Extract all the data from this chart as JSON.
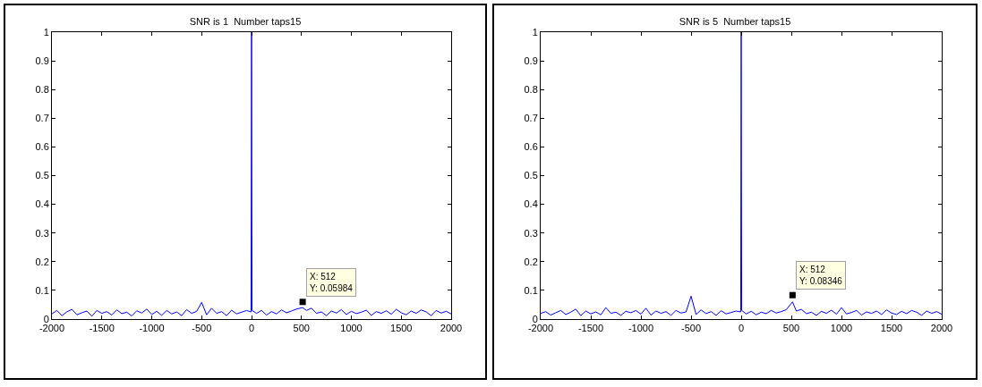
{
  "chart_data": [
    {
      "type": "line",
      "title": "SNR is 1  Number taps15",
      "xlim": [
        -2000,
        2000
      ],
      "xticks": [
        -2000,
        -1500,
        -1000,
        -500,
        0,
        500,
        1000,
        1500,
        2000
      ],
      "ylim": [
        0,
        1
      ],
      "yticks": [
        0,
        0.1,
        0.2,
        0.3,
        0.4,
        0.5,
        0.6,
        0.7,
        0.8,
        0.9,
        1
      ],
      "grid": false,
      "marker": "none",
      "line_style": "solid",
      "series": [
        {
          "color": "#0000ff",
          "x": [
            -2000,
            -1950,
            -1900,
            -1850,
            -1800,
            -1750,
            -1700,
            -1650,
            -1600,
            -1550,
            -1500,
            -1450,
            -1400,
            -1350,
            -1300,
            -1250,
            -1200,
            -1150,
            -1100,
            -1050,
            -1000,
            -950,
            -900,
            -850,
            -800,
            -750,
            -700,
            -650,
            -600,
            -550,
            -500,
            -450,
            -400,
            -350,
            -300,
            -250,
            -200,
            -150,
            -100,
            -50,
            -5,
            0,
            5,
            50,
            100,
            150,
            200,
            250,
            300,
            350,
            400,
            450,
            512,
            550,
            600,
            650,
            700,
            750,
            800,
            850,
            900,
            950,
            1000,
            1050,
            1100,
            1150,
            1200,
            1250,
            1300,
            1350,
            1400,
            1450,
            1500,
            1550,
            1600,
            1650,
            1700,
            1750,
            1800,
            1850,
            1900,
            1950,
            2000
          ],
          "values": [
            0.018,
            0.03,
            0.012,
            0.025,
            0.034,
            0.015,
            0.022,
            0.028,
            0.01,
            0.03,
            0.02,
            0.026,
            0.014,
            0.032,
            0.019,
            0.024,
            0.011,
            0.029,
            0.021,
            0.035,
            0.016,
            0.027,
            0.013,
            0.03,
            0.018,
            0.025,
            0.012,
            0.033,
            0.02,
            0.027,
            0.058,
            0.015,
            0.038,
            0.02,
            0.026,
            0.012,
            0.031,
            0.018,
            0.024,
            0.03,
            0.025,
            1,
            0.03,
            0.02,
            0.03,
            0.014,
            0.026,
            0.018,
            0.032,
            0.022,
            0.028,
            0.035,
            0.04,
            0.03,
            0.038,
            0.02,
            0.025,
            0.012,
            0.028,
            0.021,
            0.033,
            0.016,
            0.027,
            0.019,
            0.024,
            0.031,
            0.013,
            0.026,
            0.02,
            0.029,
            0.017,
            0.034,
            0.022,
            0.015,
            0.028,
            0.02,
            0.032,
            0.025,
            0.012,
            0.03,
            0.021,
            0.027,
            0.018
          ]
        },
        {
          "type": "scatter",
          "marker": "square",
          "color": "#000000",
          "x": [
            512
          ],
          "values": [
            0.05984
          ]
        }
      ],
      "annotations": [
        "X: 512\nY: 0.05984"
      ]
    },
    {
      "type": "line",
      "title": "SNR is 5  Number taps15",
      "xlim": [
        -2000,
        2000
      ],
      "xticks": [
        -2000,
        -1500,
        -1000,
        -500,
        0,
        500,
        1000,
        1500,
        2000
      ],
      "ylim": [
        0,
        1
      ],
      "yticks": [
        0,
        0.1,
        0.2,
        0.3,
        0.4,
        0.5,
        0.6,
        0.7,
        0.8,
        0.9,
        1
      ],
      "grid": false,
      "marker": "none",
      "line_style": "solid",
      "series": [
        {
          "color": "#0000ff",
          "x": [
            -2000,
            -1950,
            -1900,
            -1850,
            -1800,
            -1750,
            -1700,
            -1650,
            -1600,
            -1550,
            -1500,
            -1450,
            -1400,
            -1350,
            -1300,
            -1250,
            -1200,
            -1150,
            -1100,
            -1050,
            -1000,
            -950,
            -900,
            -850,
            -800,
            -750,
            -700,
            -650,
            -600,
            -550,
            -500,
            -450,
            -400,
            -350,
            -300,
            -250,
            -200,
            -150,
            -100,
            -50,
            -5,
            0,
            5,
            50,
            100,
            150,
            200,
            250,
            300,
            350,
            400,
            450,
            512,
            550,
            600,
            650,
            700,
            750,
            800,
            850,
            900,
            950,
            1000,
            1050,
            1100,
            1150,
            1200,
            1250,
            1300,
            1350,
            1400,
            1450,
            1500,
            1550,
            1600,
            1650,
            1700,
            1750,
            1800,
            1850,
            1900,
            1950,
            2000
          ],
          "values": [
            0.02,
            0.026,
            0.014,
            0.022,
            0.03,
            0.016,
            0.024,
            0.035,
            0.012,
            0.028,
            0.018,
            0.025,
            0.015,
            0.04,
            0.02,
            0.024,
            0.013,
            0.027,
            0.022,
            0.03,
            0.017,
            0.038,
            0.014,
            0.028,
            0.02,
            0.026,
            0.013,
            0.03,
            0.021,
            0.025,
            0.08,
            0.016,
            0.032,
            0.019,
            0.026,
            0.013,
            0.029,
            0.018,
            0.023,
            0.028,
            0.025,
            1,
            0.03,
            0.018,
            0.027,
            0.015,
            0.024,
            0.019,
            0.03,
            0.021,
            0.026,
            0.033,
            0.06,
            0.028,
            0.034,
            0.019,
            0.024,
            0.013,
            0.027,
            0.02,
            0.031,
            0.017,
            0.04,
            0.018,
            0.023,
            0.03,
            0.014,
            0.025,
            0.02,
            0.028,
            0.016,
            0.032,
            0.021,
            0.016,
            0.027,
            0.019,
            0.03,
            0.024,
            0.013,
            0.028,
            0.02,
            0.026,
            0.017
          ]
        },
        {
          "type": "scatter",
          "marker": "square",
          "color": "#000000",
          "x": [
            512
          ],
          "values": [
            0.08346
          ]
        }
      ],
      "annotations": [
        "X: 512\nY: 0.08346"
      ]
    }
  ]
}
